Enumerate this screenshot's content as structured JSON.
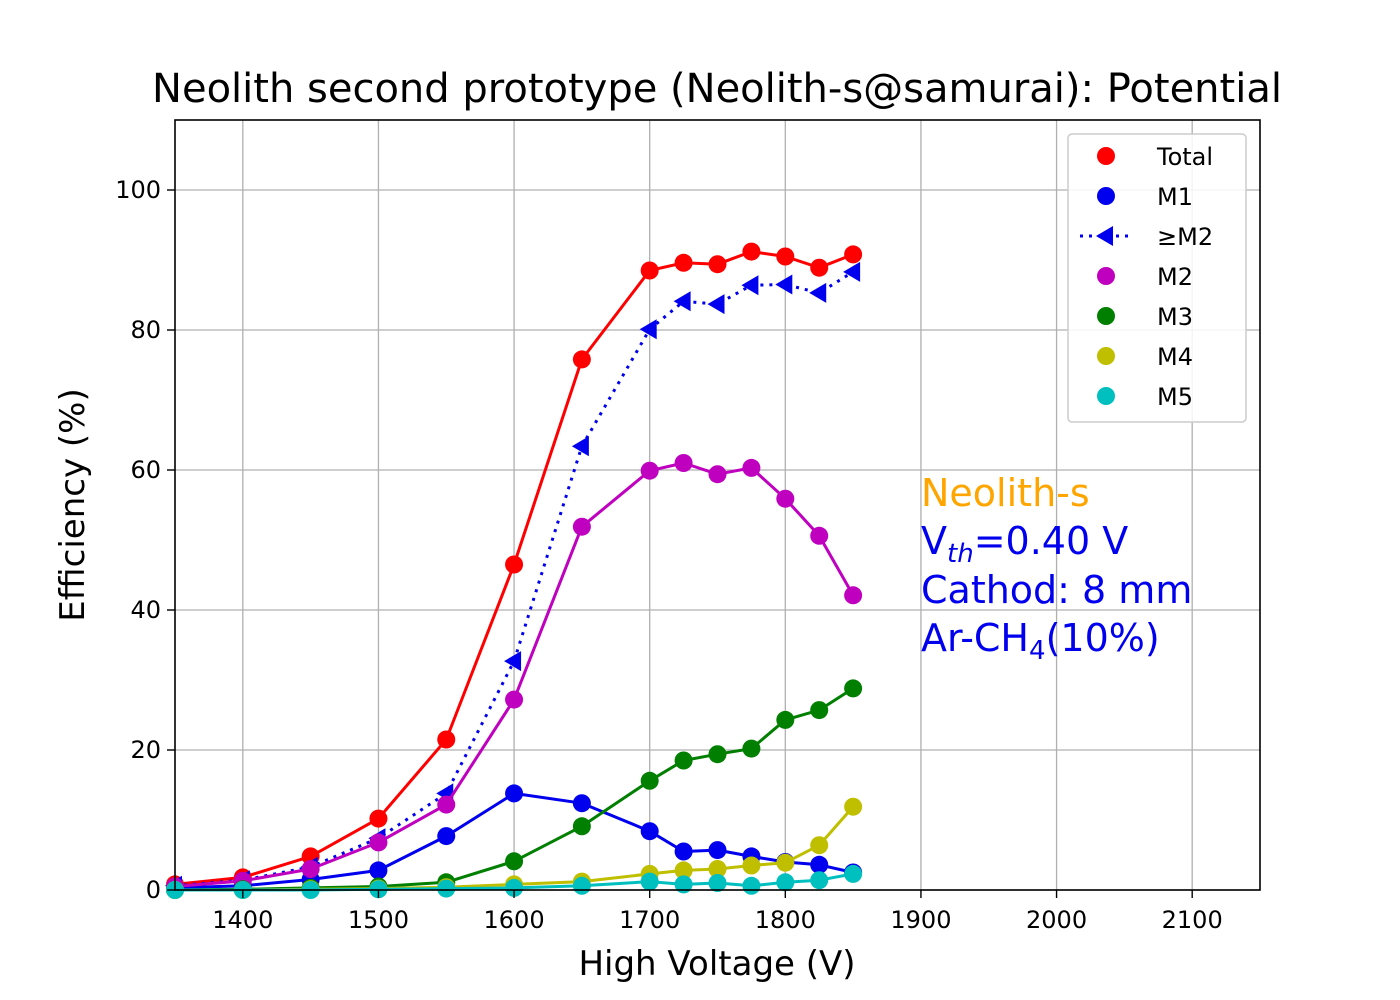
{
  "chart_data": {
    "type": "line",
    "title": "Neolith second prototype (Neolith-s@samurai): Potential",
    "xlabel": "High Voltage (V)",
    "ylabel": "Efficiency (%)",
    "xlim": [
      1350,
      2150
    ],
    "ylim": [
      0,
      110
    ],
    "xticks": [
      1400,
      1500,
      1600,
      1700,
      1800,
      1900,
      2000,
      2100
    ],
    "yticks": [
      0,
      20,
      40,
      60,
      80,
      100
    ],
    "grid": true,
    "legend_position": "top-right",
    "x": [
      1350,
      1400,
      1450,
      1500,
      1550,
      1600,
      1650,
      1700,
      1725,
      1750,
      1775,
      1800,
      1825,
      1850
    ],
    "series": [
      {
        "name": "Total",
        "color": "#ff0000",
        "marker": "circle",
        "line": "solid",
        "values": [
          0.8,
          1.8,
          4.8,
          10.2,
          21.5,
          46.5,
          75.8,
          88.5,
          89.6,
          89.4,
          91.2,
          90.5,
          88.9,
          90.8
        ]
      },
      {
        "name": "M1",
        "color": "#0000ee",
        "marker": "circle",
        "line": "solid",
        "values": [
          0.3,
          0.6,
          1.5,
          2.8,
          7.7,
          13.8,
          12.4,
          8.4,
          5.5,
          5.7,
          4.8,
          4.0,
          3.6,
          2.5
        ]
      },
      {
        "name": "≥M2",
        "color": "#0000ee",
        "marker": "triangle-left",
        "line": "dotted",
        "values": [
          0.6,
          1.4,
          3.3,
          7.4,
          13.8,
          32.7,
          63.4,
          80.1,
          84.1,
          83.7,
          86.4,
          86.5,
          85.3,
          88.3
        ]
      },
      {
        "name": "M2",
        "color": "#bf00bf",
        "marker": "circle",
        "line": "solid",
        "values": [
          0.5,
          1.3,
          3.0,
          6.8,
          12.2,
          27.2,
          51.9,
          59.9,
          61.0,
          59.4,
          60.3,
          55.9,
          50.6,
          42.1
        ]
      },
      {
        "name": "M3",
        "color": "#007f00",
        "marker": "circle",
        "line": "solid",
        "values": [
          0.0,
          0.1,
          0.3,
          0.5,
          1.1,
          4.1,
          9.1,
          15.6,
          18.5,
          19.4,
          20.2,
          24.3,
          25.7,
          28.8
        ]
      },
      {
        "name": "M4",
        "color": "#bfbf00",
        "marker": "circle",
        "line": "solid",
        "values": [
          0.0,
          0.0,
          0.1,
          0.2,
          0.4,
          0.8,
          1.2,
          2.3,
          2.8,
          3.0,
          3.5,
          3.9,
          6.4,
          11.9
        ]
      },
      {
        "name": "M5",
        "color": "#00bfbf",
        "marker": "circle",
        "line": "solid",
        "values": [
          0.0,
          0.0,
          0.0,
          0.1,
          0.2,
          0.3,
          0.6,
          1.2,
          0.8,
          1.0,
          0.6,
          1.1,
          1.4,
          2.3
        ]
      }
    ],
    "annotations": {
      "detector": {
        "text": "Neolith-s",
        "color": "#ffa500"
      },
      "threshold": {
        "prefix": "V",
        "sub": "th",
        "suffix": "=0.40 V",
        "color": "#0000ee"
      },
      "cathode": {
        "text": "Cathod: 8 mm",
        "color": "#0000ee"
      },
      "gas": {
        "prefix": "Ar-CH",
        "sub": "4",
        "suffix": "(10%)",
        "color": "#0000ee"
      }
    }
  }
}
